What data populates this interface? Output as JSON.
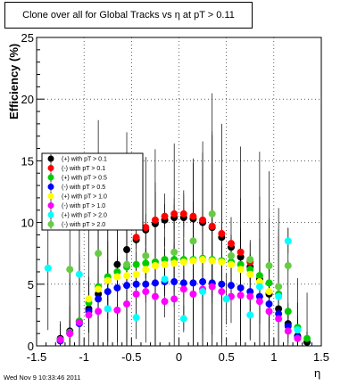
{
  "title": "Clone  over all for Global Tracks vs η at pT > 0.11",
  "timestamp": "Wed Nov  9 10:33:46 2011",
  "chart_data": {
    "type": "scatter",
    "xlabel": "η",
    "ylabel": "Efficiency (%)",
    "xlim": [
      -1.5,
      1.5
    ],
    "ylim": [
      0,
      25
    ],
    "xticks": [
      "-1.5",
      "-1",
      "-0.5",
      "0",
      "0.5",
      "1",
      "1.5"
    ],
    "yticks": [
      "0",
      "5",
      "10",
      "15",
      "20",
      "25"
    ],
    "grid": true,
    "legend_position": "upper-left",
    "series": [
      {
        "name": "(+) with pT > 0.1",
        "color": "#000000",
        "points": [
          [
            -1.25,
            0.6
          ],
          [
            -1.15,
            1.2
          ],
          [
            -1.05,
            2.0
          ],
          [
            -0.95,
            3.0
          ],
          [
            -0.85,
            4.2
          ],
          [
            -0.75,
            5.3
          ],
          [
            -0.65,
            6.6
          ],
          [
            -0.55,
            7.8
          ],
          [
            -0.45,
            8.6
          ],
          [
            -0.35,
            9.4
          ],
          [
            -0.25,
            9.9
          ],
          [
            -0.15,
            10.2
          ],
          [
            -0.05,
            10.4
          ],
          [
            0.05,
            10.4
          ],
          [
            0.15,
            10.3
          ],
          [
            0.25,
            10.0
          ],
          [
            0.35,
            9.6
          ],
          [
            0.45,
            8.8
          ],
          [
            0.55,
            8.0
          ],
          [
            0.65,
            7.2
          ],
          [
            0.75,
            6.4
          ],
          [
            0.85,
            5.4
          ],
          [
            0.95,
            4.2
          ],
          [
            1.05,
            3.0
          ],
          [
            1.15,
            1.8
          ],
          [
            1.25,
            0.8
          ],
          [
            1.35,
            0.3
          ]
        ]
      },
      {
        "name": "(-) with pT > 0.1",
        "color": "#ff0000",
        "points": [
          [
            -0.45,
            8.8
          ],
          [
            -0.35,
            9.6
          ],
          [
            -0.25,
            10.2
          ],
          [
            -0.15,
            10.5
          ],
          [
            -0.05,
            10.7
          ],
          [
            0.05,
            10.7
          ],
          [
            0.15,
            10.5
          ],
          [
            0.25,
            10.2
          ],
          [
            0.35,
            9.7
          ],
          [
            0.45,
            9.1
          ],
          [
            0.55,
            8.3
          ],
          [
            0.65,
            7.6
          ],
          [
            0.75,
            6.8
          ]
        ]
      },
      {
        "name": "(+) with pT > 0.5",
        "color": "#00cc00",
        "points": [
          [
            -1.25,
            0.5
          ],
          [
            -1.15,
            1.1
          ],
          [
            -1.05,
            2.0
          ],
          [
            -0.95,
            3.5
          ],
          [
            -0.85,
            4.8
          ],
          [
            -0.75,
            5.6
          ],
          [
            -0.65,
            6.0
          ],
          [
            -0.55,
            6.4
          ],
          [
            -0.45,
            6.6
          ],
          [
            -0.35,
            6.7
          ],
          [
            -0.25,
            6.8
          ],
          [
            -0.15,
            7.0
          ],
          [
            -0.05,
            7.0
          ],
          [
            0.05,
            7.0
          ],
          [
            0.15,
            7.0
          ],
          [
            0.25,
            7.1
          ],
          [
            0.35,
            7.0
          ],
          [
            0.45,
            6.9
          ],
          [
            0.55,
            6.8
          ],
          [
            0.65,
            6.6
          ],
          [
            0.75,
            6.2
          ],
          [
            0.85,
            5.7
          ],
          [
            0.95,
            5.1
          ],
          [
            1.05,
            4.2
          ],
          [
            1.15,
            2.8
          ],
          [
            1.25,
            1.5
          ],
          [
            1.35,
            0.6
          ]
        ]
      },
      {
        "name": "(-) with pT > 0.5",
        "color": "#0000ff",
        "points": [
          [
            -1.25,
            0.4
          ],
          [
            -1.15,
            1.0
          ],
          [
            -1.05,
            1.8
          ],
          [
            -0.95,
            2.8
          ],
          [
            -0.85,
            3.8
          ],
          [
            -0.75,
            4.4
          ],
          [
            -0.65,
            4.7
          ],
          [
            -0.55,
            4.9
          ],
          [
            -0.45,
            5.0
          ],
          [
            -0.35,
            5.0
          ],
          [
            -0.25,
            5.1
          ],
          [
            -0.15,
            5.2
          ],
          [
            -0.05,
            5.2
          ],
          [
            0.05,
            5.1
          ],
          [
            0.15,
            5.1
          ],
          [
            0.25,
            5.2
          ],
          [
            0.35,
            5.1
          ],
          [
            0.45,
            5.0
          ],
          [
            0.55,
            4.9
          ],
          [
            0.65,
            4.7
          ],
          [
            0.75,
            4.4
          ],
          [
            0.85,
            4.0
          ],
          [
            0.95,
            3.4
          ],
          [
            1.05,
            2.6
          ],
          [
            1.15,
            1.6
          ],
          [
            1.25,
            0.7
          ]
        ]
      },
      {
        "name": "(+) with pT > 1.0",
        "color": "#ffff00",
        "points": [
          [
            -0.95,
            3.8
          ],
          [
            -0.85,
            4.6
          ],
          [
            -0.75,
            5.3
          ],
          [
            -0.65,
            5.6
          ],
          [
            -0.55,
            5.7
          ],
          [
            -0.45,
            5.8
          ],
          [
            -0.35,
            6.2
          ],
          [
            -0.25,
            6.5
          ],
          [
            -0.15,
            6.6
          ],
          [
            -0.05,
            6.7
          ],
          [
            0.05,
            6.8
          ],
          [
            0.15,
            6.9
          ],
          [
            0.25,
            7.0
          ],
          [
            0.35,
            6.9
          ],
          [
            0.45,
            6.8
          ],
          [
            0.55,
            6.6
          ],
          [
            0.65,
            6.2
          ],
          [
            0.75,
            5.8
          ],
          [
            0.85,
            5.2
          ],
          [
            0.95,
            4.4
          ]
        ]
      },
      {
        "name": "(-) with pT > 1.0",
        "color": "#ff00ff",
        "points": [
          [
            -1.25,
            0.5
          ],
          [
            -1.15,
            1.0
          ],
          [
            -1.05,
            1.9
          ],
          [
            -0.95,
            2.5
          ],
          [
            -0.85,
            2.8
          ],
          [
            -0.75,
            3.0
          ],
          [
            -0.65,
            2.9
          ],
          [
            -0.55,
            3.4
          ],
          [
            -0.45,
            4.2
          ],
          [
            -0.35,
            4.4
          ],
          [
            -0.25,
            4.0
          ],
          [
            -0.15,
            3.6
          ],
          [
            -0.05,
            3.8
          ],
          [
            0.05,
            4.6
          ],
          [
            0.15,
            4.2
          ],
          [
            0.25,
            4.6
          ],
          [
            0.35,
            4.8
          ],
          [
            0.45,
            4.4
          ],
          [
            0.55,
            4.0
          ],
          [
            0.65,
            4.1
          ],
          [
            0.75,
            4.0
          ],
          [
            0.85,
            3.6
          ],
          [
            0.95,
            2.8
          ],
          [
            1.05,
            2.2
          ],
          [
            1.15,
            1.2
          ],
          [
            1.25,
            0.6
          ]
        ]
      },
      {
        "name": "(+) with pT > 2.0",
        "color": "#00ffff",
        "points": [
          [
            -1.38,
            6.3
          ],
          [
            -1.05,
            5.8
          ],
          [
            -0.75,
            3.0
          ],
          [
            -0.45,
            2.3
          ],
          [
            -0.15,
            5.4
          ],
          [
            0.05,
            2.2
          ],
          [
            0.25,
            4.4
          ],
          [
            0.5,
            3.8
          ],
          [
            0.75,
            2.5
          ],
          [
            0.85,
            4.8
          ],
          [
            1.05,
            4.0
          ],
          [
            1.15,
            8.5
          ],
          [
            1.25,
            1.3
          ]
        ]
      },
      {
        "name": "(-) with pT > 2.0",
        "color": "#66cc44",
        "points": [
          [
            -1.15,
            6.2
          ],
          [
            -0.85,
            7.5
          ],
          [
            -0.55,
            6.6
          ],
          [
            -0.35,
            7.3
          ],
          [
            -0.05,
            7.6
          ],
          [
            0.15,
            8.5
          ],
          [
            0.35,
            10.7
          ],
          [
            0.55,
            7.3
          ],
          [
            0.75,
            7.0
          ],
          [
            0.95,
            6.5
          ],
          [
            1.05,
            4.8
          ],
          [
            1.15,
            6.5
          ]
        ]
      }
    ]
  }
}
